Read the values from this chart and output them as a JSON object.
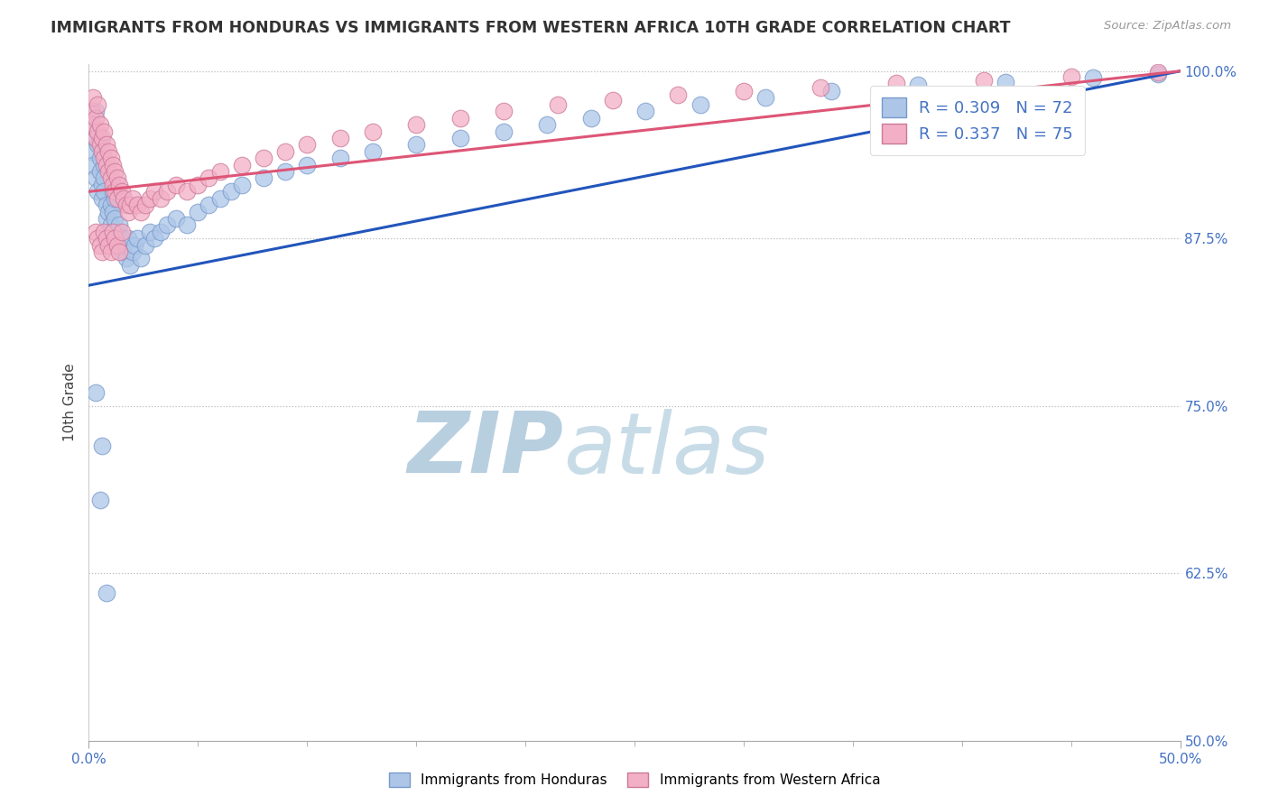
{
  "title": "IMMIGRANTS FROM HONDURAS VS IMMIGRANTS FROM WESTERN AFRICA 10TH GRADE CORRELATION CHART",
  "source_text": "Source: ZipAtlas.com",
  "ylabel": "10th Grade",
  "xmin": 0.0,
  "xmax": 0.5,
  "ymin": 0.5,
  "ymax": 1.005,
  "yticks": [
    0.5,
    0.625,
    0.75,
    0.875,
    1.0
  ],
  "ytick_labels": [
    "50.0%",
    "62.5%",
    "75.0%",
    "87.5%",
    "100.0%"
  ],
  "r_honduras": 0.309,
  "n_honduras": 72,
  "r_western_africa": 0.337,
  "n_western_africa": 75,
  "color_honduras": "#adc6e8",
  "color_western_africa": "#f2afc5",
  "line_color_honduras": "#2255bb",
  "line_color_western_africa": "#dd5577",
  "background_color": "#ffffff",
  "watermark_color": "#ccdcee",
  "honduras_x": [
    0.001,
    0.002,
    0.002,
    0.003,
    0.003,
    0.003,
    0.004,
    0.004,
    0.005,
    0.005,
    0.006,
    0.006,
    0.007,
    0.007,
    0.007,
    0.008,
    0.008,
    0.009,
    0.009,
    0.01,
    0.01,
    0.011,
    0.011,
    0.012,
    0.012,
    0.013,
    0.013,
    0.014,
    0.015,
    0.015,
    0.016,
    0.017,
    0.018,
    0.019,
    0.02,
    0.021,
    0.022,
    0.024,
    0.026,
    0.028,
    0.03,
    0.033,
    0.036,
    0.04,
    0.045,
    0.05,
    0.055,
    0.06,
    0.065,
    0.07,
    0.08,
    0.09,
    0.1,
    0.115,
    0.13,
    0.15,
    0.17,
    0.19,
    0.21,
    0.23,
    0.255,
    0.28,
    0.31,
    0.34,
    0.38,
    0.42,
    0.46,
    0.49,
    0.003,
    0.005,
    0.006,
    0.008
  ],
  "honduras_y": [
    0.94,
    0.93,
    0.96,
    0.92,
    0.95,
    0.97,
    0.91,
    0.945,
    0.935,
    0.925,
    0.915,
    0.905,
    0.93,
    0.92,
    0.91,
    0.9,
    0.89,
    0.895,
    0.88,
    0.885,
    0.9,
    0.91,
    0.895,
    0.905,
    0.89,
    0.88,
    0.87,
    0.885,
    0.875,
    0.865,
    0.87,
    0.86,
    0.875,
    0.855,
    0.865,
    0.87,
    0.875,
    0.86,
    0.87,
    0.88,
    0.875,
    0.88,
    0.885,
    0.89,
    0.885,
    0.895,
    0.9,
    0.905,
    0.91,
    0.915,
    0.92,
    0.925,
    0.93,
    0.935,
    0.94,
    0.945,
    0.95,
    0.955,
    0.96,
    0.965,
    0.97,
    0.975,
    0.98,
    0.985,
    0.99,
    0.992,
    0.995,
    0.998,
    0.76,
    0.68,
    0.72,
    0.61
  ],
  "western_africa_x": [
    0.001,
    0.002,
    0.002,
    0.003,
    0.003,
    0.004,
    0.004,
    0.005,
    0.005,
    0.006,
    0.006,
    0.007,
    0.007,
    0.008,
    0.008,
    0.009,
    0.009,
    0.01,
    0.01,
    0.011,
    0.011,
    0.012,
    0.012,
    0.013,
    0.013,
    0.014,
    0.015,
    0.016,
    0.017,
    0.018,
    0.019,
    0.02,
    0.022,
    0.024,
    0.026,
    0.028,
    0.03,
    0.033,
    0.036,
    0.04,
    0.045,
    0.05,
    0.055,
    0.06,
    0.07,
    0.08,
    0.09,
    0.1,
    0.115,
    0.13,
    0.15,
    0.17,
    0.19,
    0.215,
    0.24,
    0.27,
    0.3,
    0.335,
    0.37,
    0.41,
    0.45,
    0.49,
    0.003,
    0.004,
    0.005,
    0.006,
    0.007,
    0.008,
    0.009,
    0.01,
    0.011,
    0.012,
    0.013,
    0.014,
    0.015
  ],
  "western_africa_y": [
    0.97,
    0.96,
    0.98,
    0.95,
    0.965,
    0.975,
    0.955,
    0.96,
    0.945,
    0.95,
    0.94,
    0.955,
    0.935,
    0.945,
    0.93,
    0.94,
    0.925,
    0.935,
    0.92,
    0.93,
    0.915,
    0.925,
    0.91,
    0.92,
    0.905,
    0.915,
    0.91,
    0.905,
    0.9,
    0.895,
    0.9,
    0.905,
    0.9,
    0.895,
    0.9,
    0.905,
    0.91,
    0.905,
    0.91,
    0.915,
    0.91,
    0.915,
    0.92,
    0.925,
    0.93,
    0.935,
    0.94,
    0.945,
    0.95,
    0.955,
    0.96,
    0.965,
    0.97,
    0.975,
    0.978,
    0.982,
    0.985,
    0.988,
    0.991,
    0.993,
    0.996,
    0.999,
    0.88,
    0.875,
    0.87,
    0.865,
    0.88,
    0.875,
    0.87,
    0.865,
    0.88,
    0.875,
    0.87,
    0.865,
    0.88
  ]
}
